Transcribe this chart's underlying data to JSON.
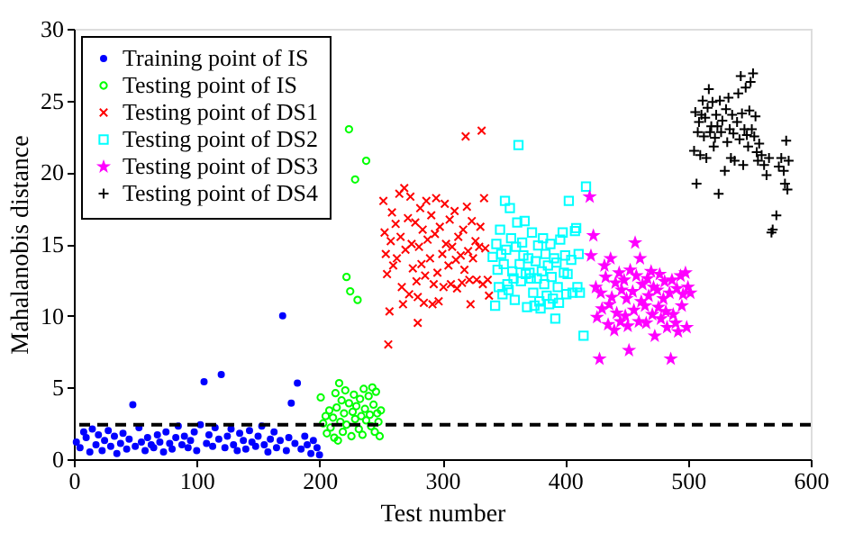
{
  "chart_data": {
    "type": "scatter",
    "xlabel": "Test number",
    "ylabel": "Mahalanobis distance",
    "xlim": [
      0,
      600
    ],
    "xticks": [
      0,
      100,
      200,
      300,
      400,
      500,
      600
    ],
    "ylim": [
      0,
      30
    ],
    "yticks": [
      0,
      5,
      10,
      15,
      20,
      25,
      30
    ],
    "grid": false,
    "legend": "top left",
    "ref_lines": [
      {
        "axis": "y",
        "value": 2.4,
        "color": "#000000",
        "line_style": "dashed"
      }
    ],
    "series": [
      {
        "name": "Training point of IS",
        "color": "#0000ff",
        "marker": "point",
        "x": [
          2,
          5,
          8,
          10,
          13,
          15,
          18,
          20,
          23,
          25,
          28,
          30,
          33,
          35,
          38,
          40,
          43,
          45,
          48,
          50,
          53,
          55,
          58,
          60,
          63,
          65,
          68,
          70,
          73,
          75,
          78,
          80,
          83,
          85,
          88,
          90,
          93,
          95,
          98,
          100,
          103,
          106,
          108,
          110,
          113,
          115,
          118,
          120,
          123,
          125,
          128,
          130,
          133,
          135,
          138,
          140,
          143,
          145,
          148,
          150,
          153,
          155,
          158,
          160,
          163,
          165,
          168,
          170,
          173,
          175,
          177,
          180,
          182,
          185,
          188,
          190,
          193,
          195,
          198,
          200
        ],
        "values": [
          1.2,
          0.8,
          1.9,
          1.5,
          0.5,
          2.1,
          1.0,
          1.7,
          0.6,
          1.3,
          2.0,
          0.9,
          1.6,
          0.4,
          1.1,
          1.8,
          0.7,
          1.4,
          3.8,
          0.9,
          2.2,
          1.2,
          0.6,
          1.5,
          1.0,
          0.8,
          1.7,
          1.2,
          0.5,
          1.9,
          1.1,
          0.7,
          1.5,
          2.3,
          1.0,
          1.6,
          0.8,
          1.3,
          1.9,
          0.6,
          2.4,
          5.4,
          1.1,
          1.7,
          0.9,
          2.2,
          1.4,
          5.9,
          0.8,
          1.6,
          2.1,
          1.0,
          0.6,
          1.8,
          1.3,
          0.7,
          2.0,
          1.2,
          0.9,
          1.6,
          2.3,
          1.0,
          0.5,
          1.4,
          1.9,
          0.8,
          1.3,
          10.0,
          0.6,
          1.5,
          3.9,
          1.1,
          5.3,
          0.7,
          1.6,
          1.0,
          0.4,
          1.3,
          0.8,
          0.3
        ]
      },
      {
        "name": "Testing point of IS",
        "color": "#00ff00",
        "marker": "circle",
        "x": [
          201,
          203,
          205,
          206,
          208,
          209,
          211,
          212,
          213,
          214,
          215,
          216,
          217,
          218,
          219,
          220,
          221,
          222,
          222,
          224,
          224,
          225,
          226,
          227,
          228,
          229,
          229,
          230,
          231,
          232,
          233,
          234,
          235,
          236,
          237,
          238,
          238,
          240,
          241,
          242,
          243,
          244,
          245,
          246,
          247,
          248,
          249,
          250
        ],
        "values": [
          4.3,
          2.5,
          3.0,
          1.8,
          3.4,
          2.2,
          2.9,
          1.5,
          4.6,
          3.6,
          1.3,
          5.3,
          2.6,
          4.1,
          1.9,
          3.2,
          4.8,
          12.7,
          2.4,
          23.0,
          3.9,
          11.7,
          1.6,
          3.3,
          4.5,
          19.5,
          2.8,
          3.7,
          11.1,
          2.1,
          4.2,
          3.0,
          1.7,
          4.9,
          3.5,
          20.8,
          2.7,
          4.4,
          3.1,
          2.3,
          5.0,
          3.8,
          1.9,
          4.7,
          3.2,
          2.6,
          1.6,
          3.4
        ]
      },
      {
        "name": "Testing point of DS1",
        "color": "#ff0000",
        "marker": "cross",
        "x": [
          252,
          253,
          254,
          255,
          256,
          257,
          258,
          259,
          260,
          262,
          263,
          265,
          266,
          267,
          268,
          269,
          270,
          272,
          273,
          274,
          275,
          276,
          278,
          279,
          280,
          280,
          281,
          282,
          283,
          284,
          285,
          286,
          287,
          288,
          290,
          291,
          292,
          293,
          294,
          295,
          296,
          297,
          298,
          300,
          301,
          302,
          303,
          305,
          306,
          307,
          308,
          310,
          311,
          312,
          313,
          315,
          316,
          317,
          318,
          319,
          320,
          321,
          322,
          323,
          324,
          325,
          327,
          328,
          330,
          331,
          332,
          333,
          334,
          335,
          337,
          338
        ],
        "values": [
          18.0,
          15.8,
          14.3,
          12.9,
          8.0,
          10.3,
          15.2,
          17.2,
          13.5,
          16.4,
          14.0,
          18.5,
          15.5,
          12.0,
          10.8,
          18.9,
          14.6,
          16.8,
          11.5,
          18.3,
          15.0,
          13.3,
          16.5,
          12.4,
          9.5,
          11.3,
          14.8,
          17.5,
          13.6,
          16.0,
          10.9,
          12.8,
          18.0,
          15.3,
          14.0,
          17.0,
          10.8,
          12.2,
          15.7,
          18.2,
          13.0,
          11.0,
          16.2,
          14.3,
          12.0,
          17.8,
          15.0,
          13.5,
          16.7,
          12.2,
          14.8,
          17.3,
          13.9,
          11.9,
          15.5,
          14.2,
          12.3,
          16.0,
          13.2,
          22.5,
          17.6,
          14.5,
          12.5,
          10.8,
          16.6,
          14.0,
          15.2,
          12.5,
          14.8,
          16.2,
          22.9,
          12.2,
          18.2,
          14.7,
          12.5,
          11.4
        ]
      },
      {
        "name": "Testing point of DS2",
        "color": "#00ffff",
        "marker": "square",
        "x": [
          341,
          343,
          344,
          345,
          346,
          347,
          348,
          349,
          350,
          351,
          352,
          353,
          354,
          355,
          356,
          357,
          358,
          359,
          360,
          361,
          362,
          363,
          364,
          365,
          366,
          367,
          368,
          369,
          370,
          371,
          372,
          373,
          374,
          375,
          376,
          377,
          378,
          379,
          380,
          381,
          382,
          383,
          384,
          385,
          386,
          387,
          388,
          389,
          390,
          391,
          392,
          393,
          394,
          395,
          396,
          398,
          399,
          400,
          401,
          402,
          403,
          405,
          406,
          408,
          409,
          410,
          411,
          412,
          415,
          417
        ],
        "values": [
          14.1,
          10.7,
          15.0,
          13.2,
          12.0,
          16.0,
          14.3,
          11.5,
          13.6,
          18.0,
          14.6,
          12.2,
          11.8,
          17.5,
          15.4,
          13.1,
          12.6,
          11.1,
          14.8,
          16.5,
          21.9,
          13.6,
          12.4,
          15.1,
          14.2,
          16.6,
          12.9,
          10.6,
          14.0,
          13.0,
          12.6,
          15.8,
          11.6,
          10.7,
          13.8,
          12.6,
          14.9,
          11.0,
          10.5,
          13.1,
          15.4,
          12.2,
          14.3,
          11.4,
          13.5,
          10.8,
          15.0,
          12.7,
          11.2,
          14.0,
          9.8,
          13.7,
          12.0,
          10.9,
          15.3,
          15.8,
          13.0,
          14.2,
          11.5,
          12.9,
          18.0,
          13.9,
          11.6,
          15.9,
          16.1,
          12.0,
          14.3,
          11.6,
          8.6,
          19.0
        ]
      },
      {
        "name": "Testing point of DS3",
        "color": "#ff00ff",
        "marker": "star",
        "x": [
          420,
          421,
          423,
          425,
          426,
          428,
          429,
          430,
          432,
          433,
          435,
          436,
          437,
          438,
          440,
          441,
          442,
          444,
          445,
          446,
          448,
          449,
          450,
          451,
          452,
          453,
          455,
          456,
          457,
          458,
          460,
          461,
          462,
          463,
          465,
          466,
          467,
          468,
          470,
          471,
          472,
          473,
          475,
          476,
          477,
          478,
          480,
          481,
          482,
          483,
          485,
          486,
          487,
          488,
          490,
          491,
          492,
          494,
          495,
          496,
          498,
          499,
          500,
          502
        ],
        "values": [
          18.3,
          14.2,
          15.6,
          12.0,
          9.9,
          7.0,
          11.6,
          10.5,
          13.5,
          12.7,
          9.4,
          10.8,
          14.0,
          11.3,
          9.0,
          12.3,
          10.2,
          13.0,
          9.6,
          11.8,
          12.5,
          10.0,
          11.2,
          9.3,
          7.6,
          13.2,
          11.7,
          10.4,
          15.1,
          12.8,
          9.6,
          14.0,
          11.0,
          12.2,
          10.7,
          9.5,
          12.6,
          11.4,
          13.1,
          10.1,
          12.0,
          8.6,
          11.8,
          10.6,
          12.9,
          9.8,
          11.2,
          12.4,
          10.3,
          9.2,
          11.6,
          7.0,
          12.5,
          10.1,
          9.5,
          11.9,
          8.9,
          12.8,
          10.7,
          11.5,
          13.0,
          9.2,
          12.0,
          11.6
        ]
      },
      {
        "name": "Testing point of DS4",
        "color": "#000000",
        "marker": "plus",
        "x": [
          505,
          506,
          507,
          508,
          509,
          510,
          511,
          512,
          513,
          514,
          515,
          516,
          517,
          518,
          519,
          520,
          521,
          522,
          523,
          524,
          525,
          526,
          527,
          528,
          530,
          531,
          532,
          533,
          534,
          535,
          536,
          537,
          538,
          540,
          541,
          542,
          543,
          544,
          545,
          546,
          547,
          548,
          549,
          550,
          551,
          552,
          553,
          554,
          555,
          556,
          557,
          558,
          560,
          562,
          564,
          566,
          568,
          569,
          572,
          574,
          576,
          578,
          579,
          580,
          581,
          582
        ],
        "values": [
          21.5,
          24.2,
          19.2,
          22.8,
          23.5,
          21.2,
          24.0,
          25.0,
          22.5,
          23.8,
          21.0,
          24.5,
          25.8,
          22.8,
          23.2,
          24.9,
          21.8,
          22.4,
          24.0,
          23.2,
          18.5,
          25.0,
          22.8,
          23.6,
          20.1,
          24.4,
          22.1,
          25.2,
          23.0,
          21.0,
          24.0,
          22.7,
          20.8,
          23.5,
          25.5,
          22.3,
          26.7,
          24.1,
          20.5,
          23.0,
          25.9,
          22.6,
          21.8,
          24.3,
          26.3,
          23.0,
          26.9,
          22.5,
          23.9,
          21.4,
          20.8,
          22.0,
          21.2,
          20.5,
          19.8,
          21.0,
          15.8,
          16.0,
          17.0,
          20.4,
          21.0,
          20.1,
          19.2,
          22.2,
          18.8,
          20.8
        ]
      }
    ]
  }
}
